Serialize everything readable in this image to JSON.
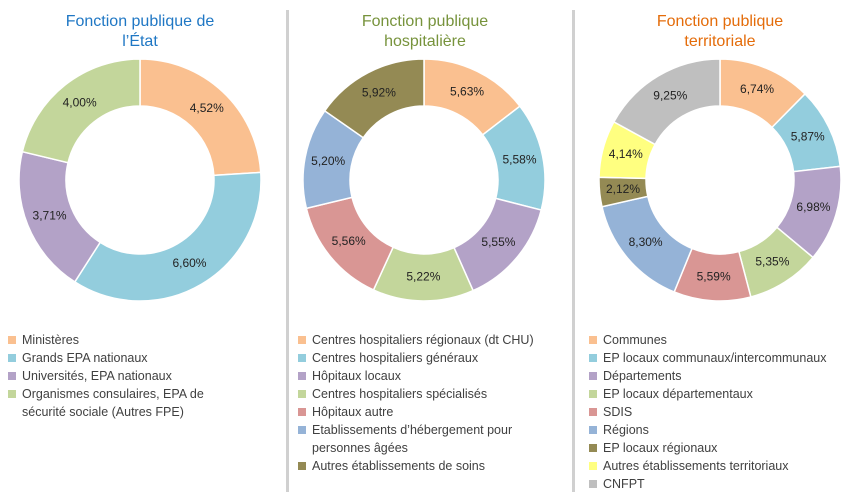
{
  "chart_data": [
    {
      "type": "donut",
      "title": "Fonction publique de l’État",
      "title_color": "#1F77C4",
      "categories": [
        "Ministères",
        "Grands EPA nationaux",
        "Universités, EPA nationaux",
        "Organismes consulaires, EPA de sécurité sociale (Autres FPE)"
      ],
      "values": [
        4.52,
        6.6,
        3.71,
        4.0
      ],
      "value_labels": [
        "4,52%",
        "6,60%",
        "3,71%",
        "4,00%"
      ],
      "colors": [
        "#FAC090",
        "#93CDDD",
        "#B3A2C7",
        "#C3D69B"
      ]
    },
    {
      "type": "donut",
      "title": "Fonction publique hospitalière",
      "title_color": "#77933C",
      "categories": [
        "Centres hospitaliers régionaux (dt CHU)",
        "Centres hospitaliers généraux",
        "Hôpitaux locaux",
        "Centres hospitaliers spécialisés",
        "Hôpitaux autre",
        "Etablissements d’hébergement pour personnes âgées",
        "Autres établissements de soins"
      ],
      "values": [
        5.63,
        5.58,
        5.55,
        5.22,
        5.56,
        5.2,
        5.92
      ],
      "value_labels": [
        "5,63%",
        "5,58%",
        "5,55%",
        "5,22%",
        "5,56%",
        "5,20%",
        "5,92%"
      ],
      "colors": [
        "#FAC090",
        "#93CDDD",
        "#B3A2C7",
        "#C3D69B",
        "#D99694",
        "#95B3D7",
        "#948A54"
      ]
    },
    {
      "type": "donut",
      "title": "Fonction publique territoriale",
      "title_color": "#E46C0A",
      "categories": [
        "Communes",
        "EP locaux communaux/intercommunaux",
        "Départements",
        "EP locaux départementaux",
        "SDIS",
        "Régions",
        "EP locaux régionaux",
        "Autres établissements territoriaux",
        "CNFPT"
      ],
      "values": [
        6.74,
        5.87,
        6.98,
        5.35,
        5.59,
        8.3,
        2.12,
        4.14,
        9.25
      ],
      "value_labels": [
        "6,74%",
        "5,87%",
        "6,98%",
        "5,35%",
        "5,59%",
        "8,30%",
        "2,12%",
        "4,14%",
        "9,25%"
      ],
      "colors": [
        "#FAC090",
        "#93CDDD",
        "#B3A2C7",
        "#C3D69B",
        "#D99694",
        "#95B3D7",
        "#948A54",
        "#FFFF80",
        "#BFBFBF"
      ]
    }
  ]
}
